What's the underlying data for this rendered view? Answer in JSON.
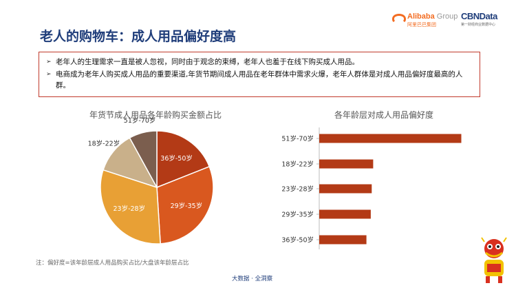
{
  "header": {
    "title": "老人的购物车：成人用品偏好度高",
    "logo_alibaba_word": "Alibaba",
    "logo_alibaba_group": " Group",
    "logo_alibaba_sub": "阿里巴巴集团",
    "logo_cbn_word": "CBNData",
    "logo_cbn_sub": "第一财经商业数据中心"
  },
  "bullets": [
    "老年人的生理需求一直是被人忽视，同时由于观念的束缚，老年人也羞于在线下购买成人用品。",
    "电商成为老年人购买成人用品的重要渠道,年货节期间成人用品在老年群体中需求火爆，老年人群体是对成人用品偏好度最高的人群。"
  ],
  "colors": {
    "title": "#1f3d7a",
    "box_border": "#c0392b",
    "bar": "#b33a16"
  },
  "chart_data": [
    {
      "type": "pie",
      "title": "年货节成人用品各年龄购买金额占比",
      "start_angle_deg": 0,
      "slices": [
        {
          "label": "36岁-50岁",
          "value": 19,
          "color": "#b33a16"
        },
        {
          "label": "29岁-35岁",
          "value": 30,
          "color": "#d9581f"
        },
        {
          "label": "23岁-28岁",
          "value": 31,
          "color": "#e8a035"
        },
        {
          "label": "18岁-22岁",
          "value": 12,
          "color": "#c9b08a"
        },
        {
          "label": "51岁-70岁",
          "value": 8,
          "color": "#7b5e4e"
        }
      ]
    },
    {
      "type": "bar",
      "orientation": "horizontal",
      "title": "各年龄层对成人用品偏好度",
      "categories": [
        "51岁-70岁",
        "18岁-22岁",
        "23岁-28岁",
        "29岁-35岁",
        "36岁-50岁"
      ],
      "values": [
        2.95,
        1.12,
        1.09,
        1.07,
        0.98
      ],
      "xlim": [
        0,
        3.0
      ],
      "grid": false,
      "axis_labels_shown": false
    }
  ],
  "note": "注：偏好度=该年龄层成人用品购买占比/大盘该年龄层占比",
  "footer": "大数据 · 全洞察"
}
